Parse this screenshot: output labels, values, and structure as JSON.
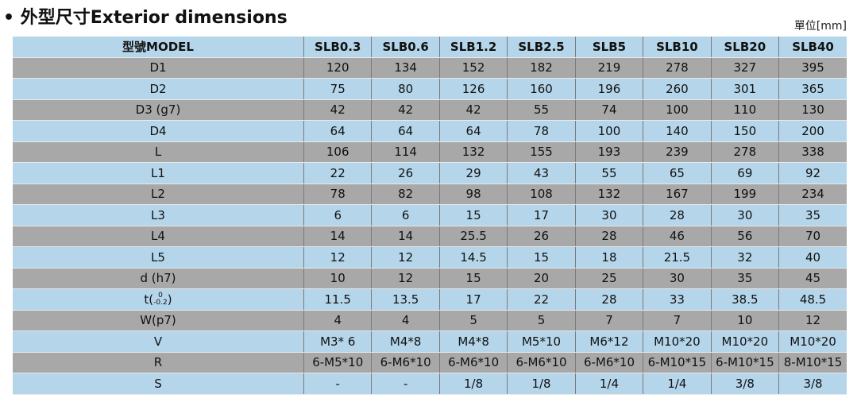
{
  "header": {
    "title": "• 外型尺寸Exterior dimensions",
    "unit": "單位[mm]"
  },
  "table": {
    "columns": [
      "型號MODEL",
      "SLB0.3",
      "SLB0.6",
      "SLB1.2",
      "SLB2.5",
      "SLB5",
      "SLB10",
      "SLB20",
      "SLB40"
    ],
    "rows": [
      {
        "label": "D1",
        "values": [
          "120",
          "134",
          "152",
          "182",
          "219",
          "278",
          "327",
          "395"
        ]
      },
      {
        "label": "D2",
        "values": [
          "75",
          "80",
          "126",
          "160",
          "196",
          "260",
          "301",
          "365"
        ]
      },
      {
        "label": "D3 (g7)",
        "values": [
          "42",
          "42",
          "42",
          "55",
          "74",
          "100",
          "110",
          "130"
        ]
      },
      {
        "label": "D4",
        "values": [
          "64",
          "64",
          "64",
          "78",
          "100",
          "140",
          "150",
          "200"
        ]
      },
      {
        "label": "L",
        "values": [
          "106",
          "114",
          "132",
          "155",
          "193",
          "239",
          "278",
          "338"
        ]
      },
      {
        "label": "L1",
        "values": [
          "22",
          "26",
          "29",
          "43",
          "55",
          "65",
          "69",
          "92"
        ]
      },
      {
        "label": "L2",
        "values": [
          "78",
          "82",
          "98",
          "108",
          "132",
          "167",
          "199",
          "234"
        ]
      },
      {
        "label": "L3",
        "values": [
          "6",
          "6",
          "15",
          "17",
          "30",
          "28",
          "30",
          "35"
        ]
      },
      {
        "label": "L4",
        "values": [
          "14",
          "14",
          "25.5",
          "26",
          "28",
          "46",
          "56",
          "70"
        ]
      },
      {
        "label": "L5",
        "values": [
          "12",
          "12",
          "14.5",
          "15",
          "18",
          "21.5",
          "32",
          "40"
        ]
      },
      {
        "label": "d (h7)",
        "values": [
          "10",
          "12",
          "15",
          "20",
          "25",
          "30",
          "35",
          "45"
        ]
      },
      {
        "label": {
          "text": "t(",
          "upper": "0",
          "lower": "-0.2",
          "close": ")"
        },
        "values": [
          "11.5",
          "13.5",
          "17",
          "22",
          "28",
          "33",
          "38.5",
          "48.5"
        ]
      },
      {
        "label": "W(p7)",
        "values": [
          "4",
          "4",
          "5",
          "5",
          "7",
          "7",
          "10",
          "12"
        ]
      },
      {
        "label": "V",
        "values": [
          "M3* 6",
          "M4*8",
          "M4*8",
          "M5*10",
          "M6*12",
          "M10*20",
          "M10*20",
          "M10*20"
        ]
      },
      {
        "label": "R",
        "values": [
          "6-M5*10",
          "6-M6*10",
          "6-M6*10",
          "6-M6*10",
          "6-M6*10",
          "6-M10*15",
          "6-M10*15",
          "8-M10*15"
        ]
      },
      {
        "label": "S",
        "values": [
          "-",
          "-",
          "1/8",
          "1/8",
          "1/4",
          "1/4",
          "3/8",
          "3/8"
        ]
      }
    ]
  }
}
